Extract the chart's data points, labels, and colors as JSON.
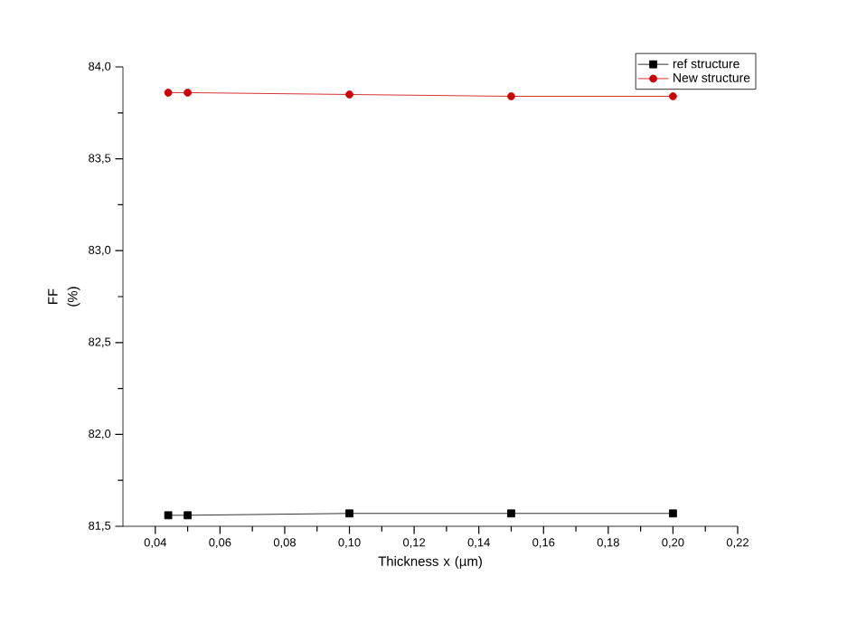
{
  "chart_data": {
    "type": "line",
    "xlabel": "Thickness x (µm)",
    "ylabel": "FF (%)",
    "x": [
      0.044,
      0.05,
      0.1,
      0.15,
      0.2
    ],
    "series": [
      {
        "name": "ref structure",
        "color": "#000000",
        "marker": "square",
        "values": [
          81.56,
          81.56,
          81.57,
          81.57,
          81.57
        ]
      },
      {
        "name": "New structure",
        "color": "#cc0000",
        "marker": "circle",
        "values": [
          83.86,
          83.86,
          83.85,
          83.84,
          83.84
        ]
      }
    ],
    "xlim": [
      0.03,
      0.22
    ],
    "ylim": [
      81.5,
      84.0
    ],
    "xticks": [
      {
        "value": 0.04,
        "label": "0,04"
      },
      {
        "value": 0.06,
        "label": "0,06"
      },
      {
        "value": 0.08,
        "label": "0,08"
      },
      {
        "value": 0.1,
        "label": "0,10"
      },
      {
        "value": 0.12,
        "label": "0,12"
      },
      {
        "value": 0.14,
        "label": "0,14"
      },
      {
        "value": 0.16,
        "label": "0,16"
      },
      {
        "value": 0.18,
        "label": "0,18"
      },
      {
        "value": 0.2,
        "label": "0,20"
      },
      {
        "value": 0.22,
        "label": "0,22"
      }
    ],
    "yticks": [
      {
        "value": 81.5,
        "label": "81,5"
      },
      {
        "value": 82.0,
        "label": "82,0"
      },
      {
        "value": 82.5,
        "label": "82,5"
      },
      {
        "value": 83.0,
        "label": "83,0"
      },
      {
        "value": 83.5,
        "label": "83,5"
      },
      {
        "value": 84.0,
        "label": "84,0"
      }
    ],
    "legend": "top right",
    "grid": false,
    "line_style": "solid"
  }
}
